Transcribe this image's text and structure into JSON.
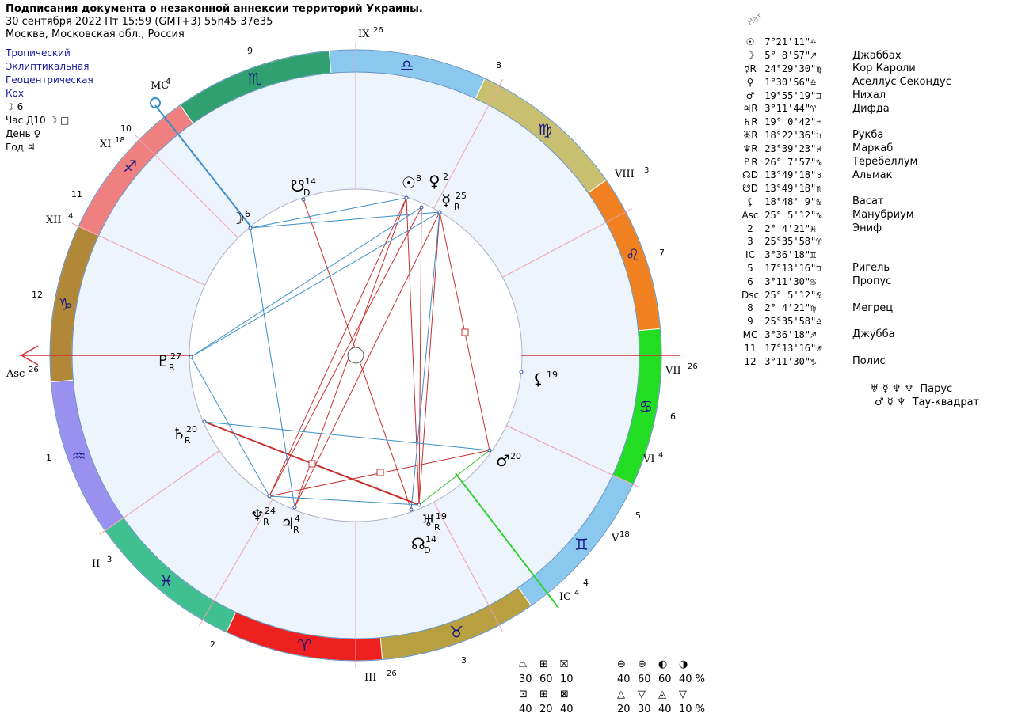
{
  "header": {
    "title": "Подписания документа о незаконной аннексии территорий Украины.",
    "datetime": "30 сентября 2022  Пт  15:59 (GMT+3) 55n45  37e35",
    "location": "Москва, Московская обл., Россия"
  },
  "settings": {
    "zodiac": "Тропический",
    "coords": "Эклиптикальная",
    "center": "Геоцентрическая",
    "houses": "Кох",
    "moon_day": "☽  6",
    "hour": "Час Д10 ☽ □",
    "day": "День ♀",
    "year": "Год ♃"
  },
  "list_label": "Нат",
  "planets": [
    {
      "glyph": "☉",
      "pos": "7°21'11\"",
      "sign": "♎",
      "star": ""
    },
    {
      "glyph": "☽",
      "pos": "5° 8'57\"",
      "sign": "♐",
      "star": "Джаббах"
    },
    {
      "glyph": "☿R",
      "pos": "24°29'30\"",
      "sign": "♍",
      "star": "Кор Кароли"
    },
    {
      "glyph": "♀",
      "pos": "1°30'56\"",
      "sign": "♎",
      "star": "Аселлус Секондус"
    },
    {
      "glyph": "♂",
      "pos": "19°55'19\"",
      "sign": "♊",
      "star": "Нихал"
    },
    {
      "glyph": "♃R",
      "pos": "3°11'44\"",
      "sign": "♈",
      "star": "Дифда"
    },
    {
      "glyph": "♄R",
      "pos": "19° 0'42\"",
      "sign": "♒",
      "star": ""
    },
    {
      "glyph": "♅R",
      "pos": "18°22'36\"",
      "sign": "♉",
      "star": "Рукба"
    },
    {
      "glyph": "♆R",
      "pos": "23°39'23\"",
      "sign": "♓",
      "star": "Маркаб"
    },
    {
      "glyph": "♇R",
      "pos": "26° 7'57\"",
      "sign": "♑",
      "star": "Теребеллум"
    },
    {
      "glyph": "☊D",
      "pos": "13°49'18\"",
      "sign": "♉",
      "star": "Альмак"
    },
    {
      "glyph": "☋D",
      "pos": "13°49'18\"",
      "sign": "♏",
      "star": ""
    },
    {
      "glyph": "⚸",
      "pos": "18°48' 9\"",
      "sign": "♋",
      "star": "Васат"
    },
    {
      "glyph": "Asc",
      "pos": "25° 5'12\"",
      "sign": "♑",
      "star": "Манубриум"
    },
    {
      "glyph": "2",
      "pos": "2° 4'21\"",
      "sign": "♓",
      "star": "Эниф"
    },
    {
      "glyph": "3",
      "pos": "25°35'58\"",
      "sign": "♈",
      "star": ""
    },
    {
      "glyph": "IC",
      "pos": "3°36'18\"",
      "sign": "♊",
      "star": ""
    },
    {
      "glyph": "5",
      "pos": "17°13'16\"",
      "sign": "♊",
      "star": "Ригель"
    },
    {
      "glyph": "6",
      "pos": "3°11'30\"",
      "sign": "♋",
      "star": "Пропус"
    },
    {
      "glyph": "Dsc",
      "pos": "25° 5'12\"",
      "sign": "♋",
      "star": ""
    },
    {
      "glyph": "8",
      "pos": "2° 4'21\"",
      "sign": "♍",
      "star": "Мегрец"
    },
    {
      "glyph": "9",
      "pos": "25°35'58\"",
      "sign": "♎",
      "star": ""
    },
    {
      "glyph": "MC",
      "pos": "3°36'18\"",
      "sign": "♐",
      "star": "Джубба"
    },
    {
      "glyph": "11",
      "pos": "17°13'16\"",
      "sign": "♐",
      "star": ""
    },
    {
      "glyph": "12",
      "pos": "3°11'30\"",
      "sign": "♑",
      "star": "Полис"
    }
  ],
  "figures": [
    {
      "glyphs": "♅ ☿ ♆ ♆",
      "label": "Парус"
    },
    {
      "glyphs": "♂ ☿ ♆",
      "label": "Тау-квадрат"
    }
  ],
  "stats": {
    "row1_glyphs": [
      "⏢",
      "⊞",
      "⛝",
      "⊖",
      "⊖",
      "◐",
      "◑"
    ],
    "row1_values": [
      "30",
      "60",
      "10",
      "40",
      "60",
      "60",
      "40 %"
    ],
    "row2_glyphs": [
      "⊡",
      "⊞",
      "⊠",
      "△",
      "▽",
      "◬",
      "▽"
    ],
    "row2_values": [
      "40",
      "20",
      "40",
      "20",
      "30",
      "40",
      "10 %"
    ]
  },
  "wheel": {
    "houses_outer": [
      {
        "label": "IX",
        "sup": "26"
      },
      {
        "label": "VIII",
        "sup": "3"
      },
      {
        "label": "VII",
        "sup": "26"
      },
      {
        "label": "VI",
        "sup": "4"
      },
      {
        "label": "V",
        "sup": "18"
      },
      {
        "label": "IC",
        "sup": "4"
      },
      {
        "label": "III",
        "sup": "26"
      },
      {
        "label": "II",
        "sup": "3"
      },
      {
        "label": "Asc",
        "sup": "26"
      },
      {
        "label": "XII",
        "sup": "4"
      },
      {
        "label": "XI",
        "sup": "18"
      },
      {
        "label": "MC",
        "sup": "4"
      }
    ],
    "house_numbers": [
      "1",
      "2",
      "3",
      "4",
      "5",
      "6",
      "7",
      "8",
      "9",
      "10",
      "11",
      "12"
    ],
    "signs": [
      {
        "glyph": "♎",
        "color": "#8ac8f0"
      },
      {
        "glyph": "♍",
        "color": "#c8c070"
      },
      {
        "glyph": "♌",
        "color": "#f08020"
      },
      {
        "glyph": "♋",
        "color": "#22dd22"
      },
      {
        "glyph": "♊",
        "color": "#8ac8f0"
      },
      {
        "glyph": "♉",
        "color": "#b8a040"
      },
      {
        "glyph": "♈",
        "color": "#ee2020"
      },
      {
        "glyph": "♓",
        "color": "#40c090"
      },
      {
        "glyph": "♒",
        "color": "#9a90f0"
      },
      {
        "glyph": "♑",
        "color": "#b08838"
      },
      {
        "glyph": "♐",
        "color": "#f08080"
      },
      {
        "glyph": "♏",
        "color": "#30a070"
      }
    ],
    "planet_labels": [
      {
        "name": "sun",
        "glyph": "☉",
        "deg": "8"
      },
      {
        "name": "venus",
        "glyph": "♀",
        "deg": "2"
      },
      {
        "name": "mercury",
        "glyph": "☿",
        "deg": "25",
        "flag": "R"
      },
      {
        "name": "south-node",
        "glyph": "☋",
        "deg": "14",
        "flag": "D"
      },
      {
        "name": "moon",
        "glyph": "☽",
        "deg": "6"
      },
      {
        "name": "pluto",
        "glyph": "♇",
        "deg": "27",
        "flag": "R"
      },
      {
        "name": "lilith",
        "glyph": "⚸",
        "deg": "19"
      },
      {
        "name": "saturn",
        "glyph": "♄",
        "deg": "20",
        "flag": "R"
      },
      {
        "name": "mars",
        "glyph": "♂",
        "deg": "20"
      },
      {
        "name": "neptune",
        "glyph": "♆",
        "deg": "24",
        "flag": "R"
      },
      {
        "name": "jupiter",
        "glyph": "♃",
        "deg": "4",
        "flag": "R"
      },
      {
        "name": "uranus",
        "glyph": "♅",
        "deg": "19",
        "flag": "R"
      },
      {
        "name": "north-node",
        "glyph": "☊",
        "deg": "14",
        "flag": "D"
      }
    ]
  },
  "colors": {
    "aspect_red": "#c83030",
    "aspect_blue": "#3a8ec8",
    "aspect_green": "#30c030",
    "house_line": "#f0a0b0"
  }
}
